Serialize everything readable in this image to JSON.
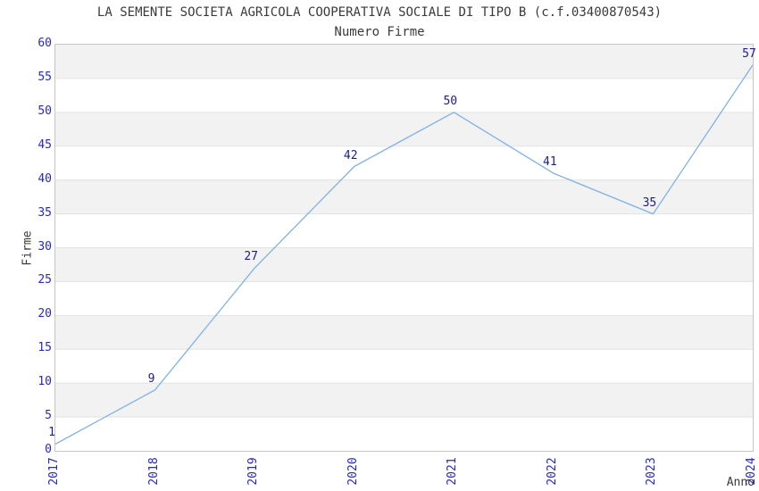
{
  "chart_data": {
    "type": "line",
    "title": "LA SEMENTE SOCIETA AGRICOLA COOPERATIVA SOCIALE DI TIPO B (c.f.03400870543)",
    "subtitle": "Numero Firme",
    "xlabel": "Anno",
    "ylabel": "Firme",
    "categories": [
      "2017",
      "2018",
      "2019",
      "2020",
      "2021",
      "2022",
      "2023",
      "2024"
    ],
    "values": [
      1,
      9,
      27,
      42,
      50,
      41,
      35,
      57
    ],
    "ylim": [
      0,
      60
    ],
    "ytick_step": 5,
    "yticks": [
      0,
      5,
      10,
      15,
      20,
      25,
      30,
      35,
      40,
      45,
      50,
      55,
      60
    ],
    "grid": "horizontal-bands-alternating",
    "legend": "none",
    "point_markers": false,
    "data_labels_shown": true,
    "colors": {
      "line": "#7fb2e5",
      "tick_labels": "#2727cc",
      "data_labels": "#1d1d86",
      "band_fill": "#f2f2f2",
      "grid_line": "#e3e3e3",
      "plot_border": "#c6c6c6",
      "text": "#3a3a3a",
      "background": "#ffffff"
    }
  }
}
